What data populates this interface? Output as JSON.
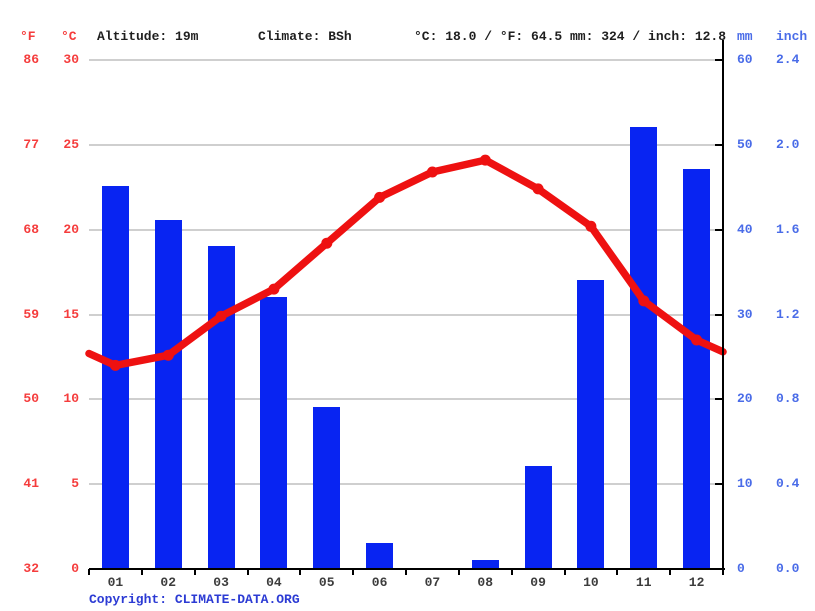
{
  "header": {
    "deg_f": "°F",
    "deg_c": "°C",
    "altitude": "Altitude: 19m",
    "climate": "Climate: BSh",
    "temp_avg": "°C: 18.0 / °F: 64.5",
    "precip_total": "mm: 324 / inch: 12.8",
    "mm": "mm",
    "inch": "inch"
  },
  "axes": {
    "fahrenheit": [
      "86",
      "77",
      "68",
      "59",
      "50",
      "41",
      "32"
    ],
    "celsius": [
      "30",
      "25",
      "20",
      "15",
      "10",
      "5",
      "0"
    ],
    "mm": [
      "60",
      "50",
      "40",
      "30",
      "20",
      "10",
      "0"
    ],
    "inch": [
      "2.4",
      "2.0",
      "1.6",
      "1.2",
      "0.8",
      "0.4",
      "0.0"
    ]
  },
  "months": [
    "01",
    "02",
    "03",
    "04",
    "05",
    "06",
    "07",
    "08",
    "09",
    "10",
    "11",
    "12"
  ],
  "copyright": {
    "prefix": "Copyright:",
    "link": "CLIMATE-DATA.ORG"
  },
  "colors": {
    "bar": "#0824f2",
    "line": "#ee1111",
    "red_text": "#f53c3c",
    "blue_text": "#4a6ce8",
    "copyright": "#2c3bd4",
    "grid": "#cfcfcf",
    "axis": "#000000",
    "month_text": "#3c3c3c",
    "header_text": "#1f1f1f"
  },
  "chart_data": {
    "type": "bar",
    "title": "Climate graph (climogram)",
    "categories": [
      "01",
      "02",
      "03",
      "04",
      "05",
      "06",
      "07",
      "08",
      "09",
      "10",
      "11",
      "12"
    ],
    "series": [
      {
        "name": "Precipitation",
        "type": "bar",
        "unit": "mm",
        "values": [
          45,
          41,
          38,
          32,
          19,
          3,
          0,
          1,
          12,
          34,
          52,
          47
        ]
      },
      {
        "name": "Temperature",
        "type": "line",
        "unit": "°C",
        "values": [
          12.0,
          12.6,
          14.9,
          16.5,
          19.2,
          21.9,
          23.4,
          24.1,
          22.4,
          20.2,
          15.8,
          13.5
        ],
        "edge_values": [
          12.7,
          12.8
        ]
      }
    ],
    "left_axis": {
      "label": "°C",
      "min": 0,
      "max": 30,
      "step": 5,
      "ticks": [
        30,
        25,
        20,
        15,
        10,
        5,
        0
      ]
    },
    "left_axis_secondary": {
      "label": "°F",
      "ticks": [
        86,
        77,
        68,
        59,
        50,
        41,
        32
      ]
    },
    "right_axis": {
      "label": "mm",
      "min": 0,
      "max": 60,
      "step": 10,
      "ticks": [
        60,
        50,
        40,
        30,
        20,
        10,
        0
      ]
    },
    "right_axis_secondary": {
      "label": "inch",
      "ticks": [
        2.4,
        2.0,
        1.6,
        1.2,
        0.8,
        0.4,
        0.0
      ]
    },
    "grid": true,
    "legend": false
  }
}
